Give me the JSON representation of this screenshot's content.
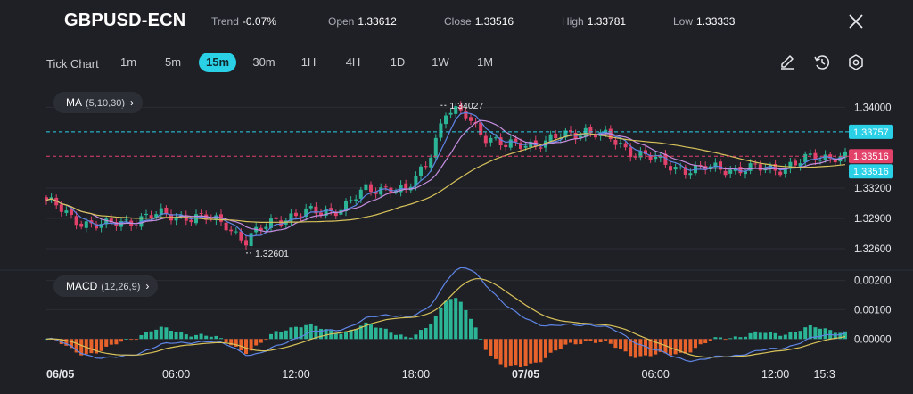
{
  "header": {
    "symbol": "GBPUSD-ECN",
    "stats": [
      {
        "label": "Trend",
        "value": "-0.07%"
      },
      {
        "label": "Open",
        "value": "1.33612"
      },
      {
        "label": "Close",
        "value": "1.33516"
      },
      {
        "label": "High",
        "value": "1.33781"
      },
      {
        "label": "Low",
        "value": "1.33333"
      }
    ]
  },
  "toolbar": {
    "chart_type_label": "Tick Chart",
    "timeframes": [
      "1m",
      "5m",
      "15m",
      "30m",
      "1H",
      "4H",
      "1D",
      "1W",
      "1M"
    ],
    "active_timeframe": "15m",
    "icons": [
      "pencil-icon",
      "history-icon",
      "settings-icon"
    ]
  },
  "indicators": {
    "ma_label": "MA",
    "ma_params": "(5,10,30)",
    "macd_label": "MACD",
    "macd_params": "(12,26,9)"
  },
  "colors": {
    "background": "#1f2026",
    "bullish": "#2bb596",
    "bearish": "#e2416a",
    "ma5": "#5f86e6",
    "ma10": "#c58de0",
    "ma30": "#d8c25a",
    "accent": "#2ad0e6",
    "macd_hist_neg": "#e8622b",
    "macd_hist_pos": "#2bb596"
  },
  "chart_data": {
    "type": "candlestick",
    "price_axis": {
      "ticks": [
        "1.34000",
        "1.33200",
        "1.32900",
        "1.32600"
      ],
      "range": [
        1.3245,
        1.3418
      ]
    },
    "price_tags": [
      {
        "value": 1.33757,
        "label": "1.33757",
        "color": "#2ad0e6",
        "style": "dashed"
      },
      {
        "value": 1.33516,
        "label": "1.33516",
        "color": "#e2416a",
        "style": "dashed"
      },
      {
        "value": 1.33516,
        "label": "1.33516",
        "color": "#2ad0e6",
        "style": "solid-tag"
      }
    ],
    "annotations": [
      {
        "label": "1.34027",
        "type": "high",
        "index": 79
      },
      {
        "label": "1.32601",
        "type": "low",
        "index": 40
      }
    ],
    "time_labels": [
      {
        "label": "06/05",
        "index": 0
      },
      {
        "label": "06:00",
        "index": 26
      },
      {
        "label": "12:00",
        "index": 50
      },
      {
        "label": "18:00",
        "index": 74
      },
      {
        "label": "07/05",
        "index": 96
      },
      {
        "label": "06:00",
        "index": 122
      },
      {
        "label": "12:00",
        "index": 146
      },
      {
        "label": "15:3",
        "index": 158
      }
    ],
    "close_path": [
      [
        0,
        1.3308
      ],
      [
        5,
        1.329
      ],
      [
        12,
        1.3282
      ],
      [
        20,
        1.3292
      ],
      [
        28,
        1.3293
      ],
      [
        36,
        1.3285
      ],
      [
        40,
        1.3267
      ],
      [
        46,
        1.329
      ],
      [
        54,
        1.3296
      ],
      [
        60,
        1.3302
      ],
      [
        64,
        1.3318
      ],
      [
        68,
        1.3322
      ],
      [
        72,
        1.3315
      ],
      [
        76,
        1.3345
      ],
      [
        80,
        1.3395
      ],
      [
        84,
        1.3392
      ],
      [
        88,
        1.3372
      ],
      [
        92,
        1.336
      ],
      [
        96,
        1.3365
      ],
      [
        100,
        1.3365
      ],
      [
        104,
        1.3372
      ],
      [
        108,
        1.3378
      ],
      [
        112,
        1.337
      ],
      [
        116,
        1.336
      ],
      [
        120,
        1.3352
      ],
      [
        124,
        1.3343
      ],
      [
        130,
        1.3338
      ],
      [
        136,
        1.334
      ],
      [
        142,
        1.3338
      ],
      [
        146,
        1.334
      ],
      [
        150,
        1.3344
      ],
      [
        154,
        1.335
      ],
      [
        158,
        1.3353
      ],
      [
        160,
        1.3351
      ]
    ],
    "macd": {
      "axis_ticks": [
        "0.00200",
        "0.00100",
        "0.00000"
      ],
      "range": [
        -0.0006,
        0.0022
      ],
      "params": "(12,26,9)"
    }
  }
}
